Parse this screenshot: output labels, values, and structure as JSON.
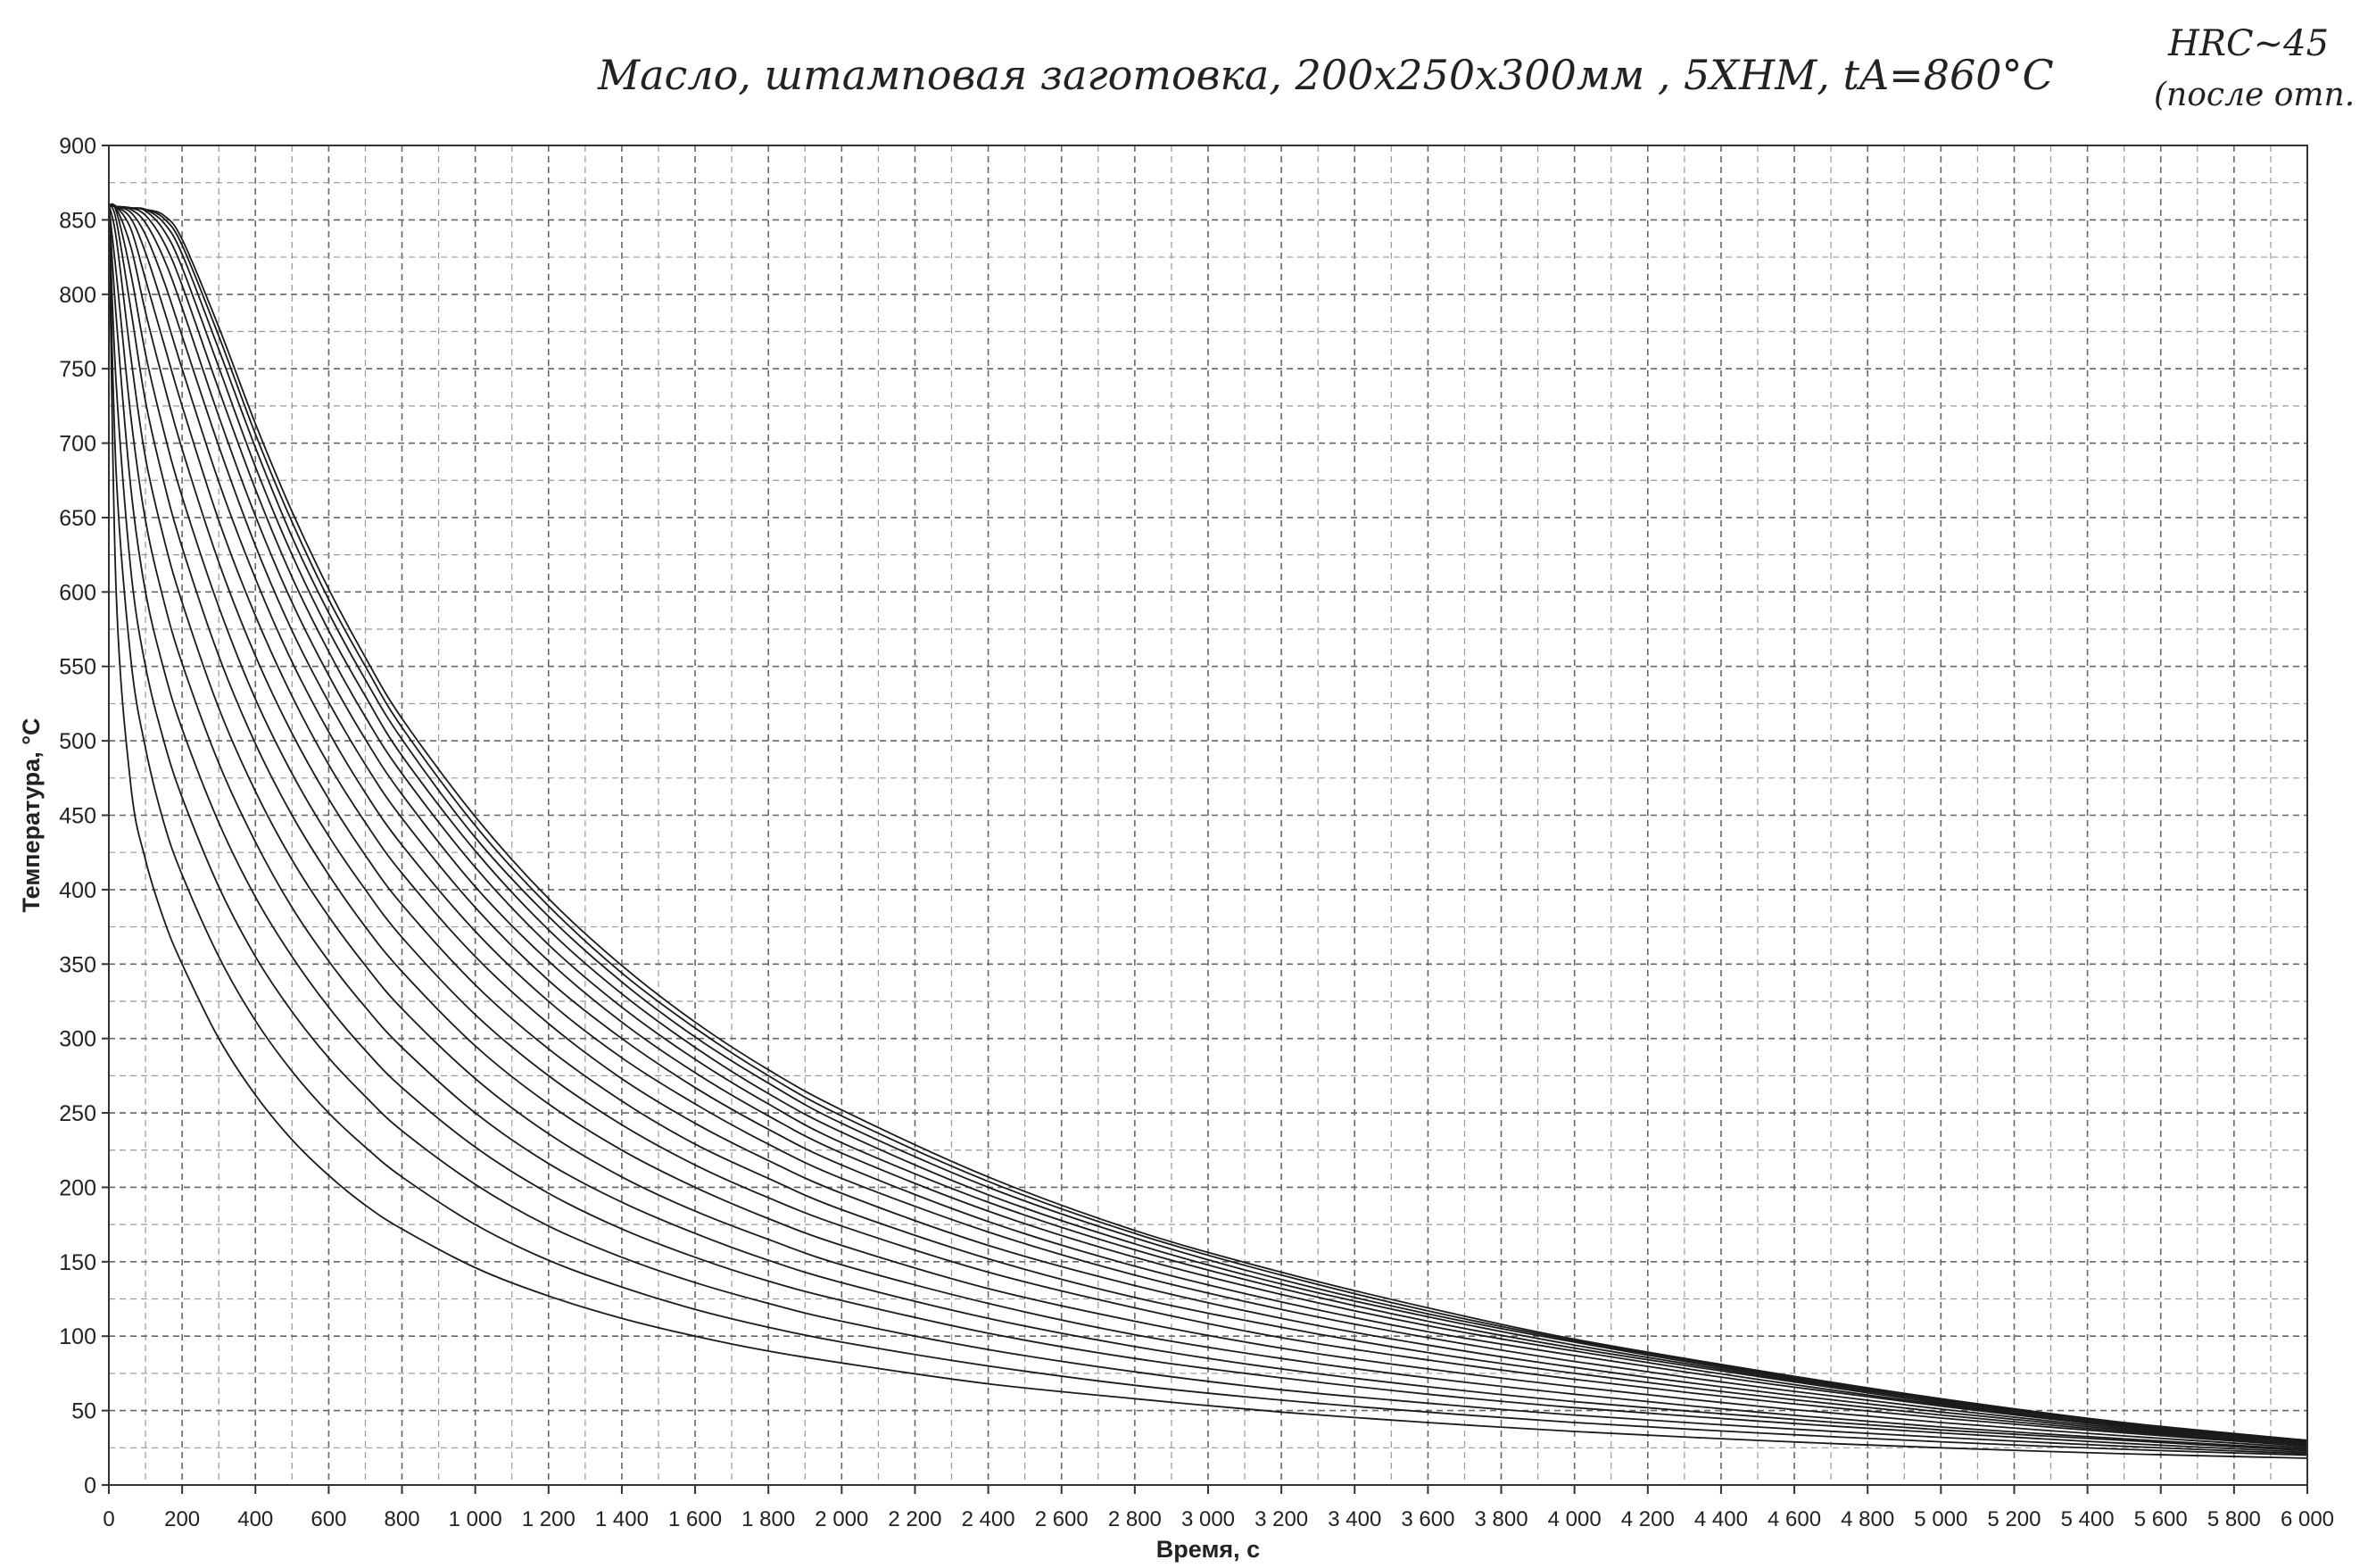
{
  "annotations": {
    "handwritten_title": "Масло, штамповая заготовка, 200x250x300мм , 5ХНМ, tA=860°C",
    "handwritten_corner_line1": "HRC~45",
    "handwritten_corner_line2": "(после отп."
  },
  "chart_data": {
    "type": "line",
    "title": "",
    "xlabel": "Время, с",
    "ylabel": "Температура, °С",
    "xlim": [
      0,
      6000
    ],
    "ylim": [
      0,
      900
    ],
    "x_ticks": [
      0,
      200,
      400,
      600,
      800,
      1000,
      1200,
      1400,
      1600,
      1800,
      2000,
      2200,
      2400,
      2600,
      2800,
      3000,
      3200,
      3400,
      3600,
      3800,
      4000,
      4200,
      4400,
      4600,
      4800,
      5000,
      5200,
      5400,
      5600,
      5800,
      6000
    ],
    "x_tick_labels": [
      "0",
      "200",
      "400",
      "600",
      "800",
      "1 000",
      "1 200",
      "1 400",
      "1 600",
      "1 800",
      "2 000",
      "2 200",
      "2 400",
      "2 600",
      "2 800",
      "3 000",
      "3 200",
      "3 400",
      "3 600",
      "3 800",
      "4 000",
      "4 200",
      "4 400",
      "4 600",
      "4 800",
      "5 000",
      "5 200",
      "5 400",
      "5 600",
      "5 800",
      "6 000"
    ],
    "y_ticks": [
      0,
      50,
      100,
      150,
      200,
      250,
      300,
      350,
      400,
      450,
      500,
      550,
      600,
      650,
      700,
      750,
      800,
      850,
      900
    ],
    "y_tick_labels": [
      "0",
      "50",
      "100",
      "150",
      "200",
      "250",
      "300",
      "350",
      "400",
      "450",
      "500",
      "550",
      "600",
      "650",
      "700",
      "750",
      "800",
      "850",
      "900"
    ],
    "grid": true,
    "legend": "none",
    "line_color": "#1a1a1a",
    "series": [
      {
        "x": [
          0,
          20,
          60,
          100,
          150,
          200,
          300,
          400,
          500,
          600,
          700,
          800,
          1000,
          1200,
          1400,
          1600,
          1800,
          2000,
          2400,
          2800,
          3200,
          3600,
          4000,
          4500,
          5000,
          5500,
          6000
        ],
        "y": [
          860,
          600,
          470,
          420,
          380,
          350,
          300,
          262,
          232,
          208,
          188,
          172,
          146,
          127,
          112,
          100,
          90,
          82,
          68,
          58,
          49,
          42,
          36,
          30,
          25,
          21,
          18
        ]
      },
      {
        "x": [
          0,
          20,
          60,
          100,
          150,
          200,
          300,
          400,
          500,
          600,
          700,
          800,
          1000,
          1200,
          1400,
          1600,
          1800,
          2000,
          2400,
          2800,
          3200,
          3600,
          4000,
          4500,
          5000,
          5500,
          6000
        ],
        "y": [
          860,
          680,
          555,
          495,
          445,
          410,
          355,
          312,
          278,
          250,
          227,
          207,
          175,
          151,
          133,
          118,
          106,
          96,
          80,
          67,
          57,
          49,
          42,
          35,
          29,
          24,
          20
        ]
      },
      {
        "x": [
          0,
          20,
          60,
          100,
          150,
          200,
          300,
          400,
          500,
          600,
          700,
          800,
          1000,
          1200,
          1400,
          1600,
          1800,
          2000,
          2400,
          2800,
          3200,
          3600,
          4000,
          4500,
          5000,
          5500,
          6000
        ],
        "y": [
          860,
          740,
          615,
          550,
          500,
          462,
          402,
          355,
          318,
          287,
          261,
          238,
          202,
          174,
          153,
          136,
          122,
          110,
          91,
          76,
          64,
          55,
          47,
          39,
          32,
          26,
          21
        ]
      },
      {
        "x": [
          0,
          20,
          60,
          100,
          150,
          200,
          300,
          400,
          500,
          600,
          700,
          800,
          1000,
          1200,
          1400,
          1600,
          1800,
          2000,
          2400,
          2800,
          3200,
          3600,
          4000,
          4500,
          5000,
          5500,
          6000
        ],
        "y": [
          860,
          785,
          670,
          600,
          548,
          508,
          445,
          395,
          355,
          321,
          292,
          267,
          227,
          196,
          172,
          153,
          137,
          124,
          102,
          85,
          72,
          61,
          52,
          43,
          35,
          28,
          22
        ]
      },
      {
        "x": [
          0,
          20,
          60,
          100,
          150,
          200,
          300,
          400,
          500,
          600,
          700,
          800,
          1000,
          1200,
          1400,
          1600,
          1800,
          2000,
          2400,
          2800,
          3200,
          3600,
          4000,
          4500,
          5000,
          5500,
          6000
        ],
        "y": [
          860,
          815,
          718,
          648,
          594,
          552,
          485,
          432,
          388,
          352,
          321,
          294,
          250,
          216,
          190,
          169,
          151,
          136,
          112,
          93,
          78,
          66,
          56,
          46,
          37,
          30,
          23
        ]
      },
      {
        "x": [
          0,
          20,
          60,
          100,
          150,
          200,
          300,
          400,
          500,
          600,
          700,
          800,
          1000,
          1200,
          1400,
          1600,
          1800,
          2000,
          2400,
          2800,
          3200,
          3600,
          4000,
          4500,
          5000,
          5500,
          6000
        ],
        "y": [
          860,
          838,
          758,
          690,
          636,
          593,
          522,
          466,
          420,
          382,
          349,
          320,
          273,
          236,
          207,
          184,
          165,
          148,
          122,
          101,
          85,
          72,
          61,
          49,
          39,
          31,
          24
        ]
      },
      {
        "x": [
          0,
          20,
          60,
          100,
          150,
          200,
          300,
          400,
          500,
          600,
          700,
          800,
          1000,
          1200,
          1400,
          1600,
          1800,
          2000,
          2400,
          2800,
          3200,
          3600,
          4000,
          4500,
          5000,
          5500,
          6000
        ],
        "y": [
          860,
          850,
          790,
          728,
          674,
          630,
          557,
          498,
          450,
          410,
          375,
          345,
          295,
          256,
          225,
          200,
          179,
          161,
          132,
          110,
          92,
          78,
          66,
          53,
          42,
          33,
          25
        ]
      },
      {
        "x": [
          0,
          20,
          60,
          100,
          150,
          200,
          300,
          400,
          500,
          600,
          700,
          800,
          1000,
          1200,
          1400,
          1600,
          1800,
          2000,
          2400,
          2800,
          3200,
          3600,
          4000,
          4500,
          5000,
          5500,
          6000
        ],
        "y": [
          860,
          856,
          814,
          760,
          708,
          664,
          590,
          528,
          478,
          436,
          400,
          368,
          316,
          275,
          242,
          215,
          193,
          174,
          143,
          119,
          99,
          84,
          71,
          57,
          45,
          35,
          26
        ]
      },
      {
        "x": [
          0,
          20,
          60,
          100,
          150,
          200,
          300,
          400,
          500,
          600,
          700,
          800,
          1000,
          1200,
          1400,
          1600,
          1800,
          2000,
          2400,
          2800,
          3200,
          3600,
          4000,
          4500,
          5000,
          5500,
          6000
        ],
        "y": [
          860,
          858,
          832,
          788,
          740,
          696,
          620,
          557,
          505,
          461,
          423,
          390,
          336,
          293,
          258,
          229,
          206,
          185,
          152,
          126,
          106,
          89,
          75,
          60,
          47,
          36,
          27
        ]
      },
      {
        "x": [
          0,
          20,
          60,
          100,
          150,
          200,
          300,
          400,
          500,
          600,
          700,
          800,
          1000,
          1200,
          1400,
          1600,
          1800,
          2000,
          2400,
          2800,
          3200,
          3600,
          4000,
          4500,
          5000,
          5500,
          6000
        ],
        "y": [
          860,
          859,
          844,
          810,
          767,
          725,
          648,
          584,
          530,
          484,
          445,
          411,
          355,
          310,
          273,
          243,
          218,
          196,
          161,
          134,
          112,
          94,
          79,
          63,
          49,
          37,
          27
        ]
      },
      {
        "x": [
          0,
          20,
          60,
          100,
          150,
          200,
          300,
          400,
          500,
          600,
          700,
          800,
          1000,
          1200,
          1400,
          1600,
          1800,
          2000,
          2400,
          2800,
          3200,
          3600,
          4000,
          4500,
          5000,
          5500,
          6000
        ],
        "y": [
          860,
          859,
          851,
          828,
          790,
          750,
          674,
          609,
          553,
          506,
          465,
          430,
          372,
          325,
          287,
          256,
          229,
          206,
          170,
          141,
          118,
          99,
          83,
          66,
          51,
          38,
          28
        ]
      },
      {
        "x": [
          0,
          20,
          60,
          100,
          150,
          200,
          300,
          400,
          500,
          600,
          700,
          800,
          1000,
          1200,
          1400,
          1600,
          1800,
          2000,
          2400,
          2800,
          3200,
          3600,
          4000,
          4500,
          5000,
          5500,
          6000
        ],
        "y": [
          860,
          859,
          855,
          840,
          809,
          772,
          698,
          631,
          574,
          526,
          484,
          448,
          388,
          339,
          300,
          267,
          239,
          215,
          177,
          147,
          123,
          103,
          87,
          69,
          53,
          39,
          28
        ]
      },
      {
        "x": [
          0,
          20,
          60,
          100,
          150,
          200,
          300,
          400,
          500,
          600,
          700,
          800,
          1000,
          1200,
          1400,
          1600,
          1800,
          2000,
          2400,
          2800,
          3200,
          3600,
          4000,
          4500,
          5000,
          5500,
          6000
        ],
        "y": [
          860,
          859,
          857,
          848,
          824,
          791,
          718,
          651,
          593,
          544,
          501,
          464,
          402,
          352,
          311,
          277,
          248,
          223,
          184,
          153,
          128,
          107,
          90,
          71,
          54,
          40,
          29
        ]
      },
      {
        "x": [
          0,
          20,
          60,
          100,
          150,
          200,
          300,
          400,
          500,
          600,
          700,
          800,
          1000,
          1200,
          1400,
          1600,
          1800,
          2000,
          2400,
          2800,
          3200,
          3600,
          4000,
          4500,
          5000,
          5500,
          6000
        ],
        "y": [
          860,
          859,
          858,
          853,
          835,
          806,
          736,
          669,
          610,
          560,
          516,
          478,
          415,
          363,
          321,
          286,
          256,
          230,
          190,
          158,
          132,
          110,
          92,
          73,
          55,
          40,
          29
        ]
      },
      {
        "x": [
          0,
          20,
          60,
          100,
          150,
          200,
          300,
          400,
          500,
          600,
          700,
          800,
          1000,
          1200,
          1400,
          1600,
          1800,
          2000,
          2400,
          2800,
          3200,
          3600,
          4000,
          4500,
          5000,
          5500,
          6000
        ],
        "y": [
          860,
          859,
          858,
          856,
          843,
          818,
          751,
          684,
          625,
          574,
          530,
          490,
          426,
          373,
          330,
          294,
          263,
          237,
          195,
          162,
          135,
          113,
          94,
          74,
          56,
          41,
          29
        ]
      },
      {
        "x": [
          0,
          20,
          60,
          100,
          150,
          200,
          300,
          400,
          500,
          600,
          700,
          800,
          1000,
          1200,
          1400,
          1600,
          1800,
          2000,
          2400,
          2800,
          3200,
          3600,
          4000,
          4500,
          5000,
          5500,
          6000
        ],
        "y": [
          860,
          859,
          858,
          857,
          848,
          827,
          763,
          697,
          637,
          586,
          541,
          501,
          435,
          382,
          338,
          301,
          270,
          243,
          200,
          166,
          138,
          115,
          96,
          75,
          57,
          41,
          30
        ]
      },
      {
        "x": [
          0,
          20,
          60,
          100,
          150,
          200,
          300,
          400,
          500,
          600,
          700,
          800,
          1000,
          1200,
          1400,
          1600,
          1800,
          2000,
          2400,
          2800,
          3200,
          3600,
          4000,
          4500,
          5000,
          5500,
          6000
        ],
        "y": [
          860,
          859,
          858,
          857,
          851,
          833,
          772,
          706,
          647,
          595,
          550,
          509,
          443,
          389,
          344,
          307,
          275,
          248,
          204,
          169,
          141,
          117,
          97,
          76,
          57,
          41,
          30
        ]
      },
      {
        "x": [
          0,
          20,
          60,
          100,
          150,
          200,
          300,
          400,
          500,
          600,
          700,
          800,
          1000,
          1200,
          1400,
          1600,
          1800,
          2000,
          2400,
          2800,
          3200,
          3600,
          4000,
          4500,
          5000,
          5500,
          6000
        ],
        "y": [
          860,
          859,
          858,
          857,
          853,
          837,
          778,
          713,
          654,
          602,
          556,
          515,
          449,
          394,
          349,
          311,
          279,
          252,
          207,
          171,
          143,
          119,
          98,
          77,
          58,
          42,
          30
        ]
      }
    ]
  }
}
